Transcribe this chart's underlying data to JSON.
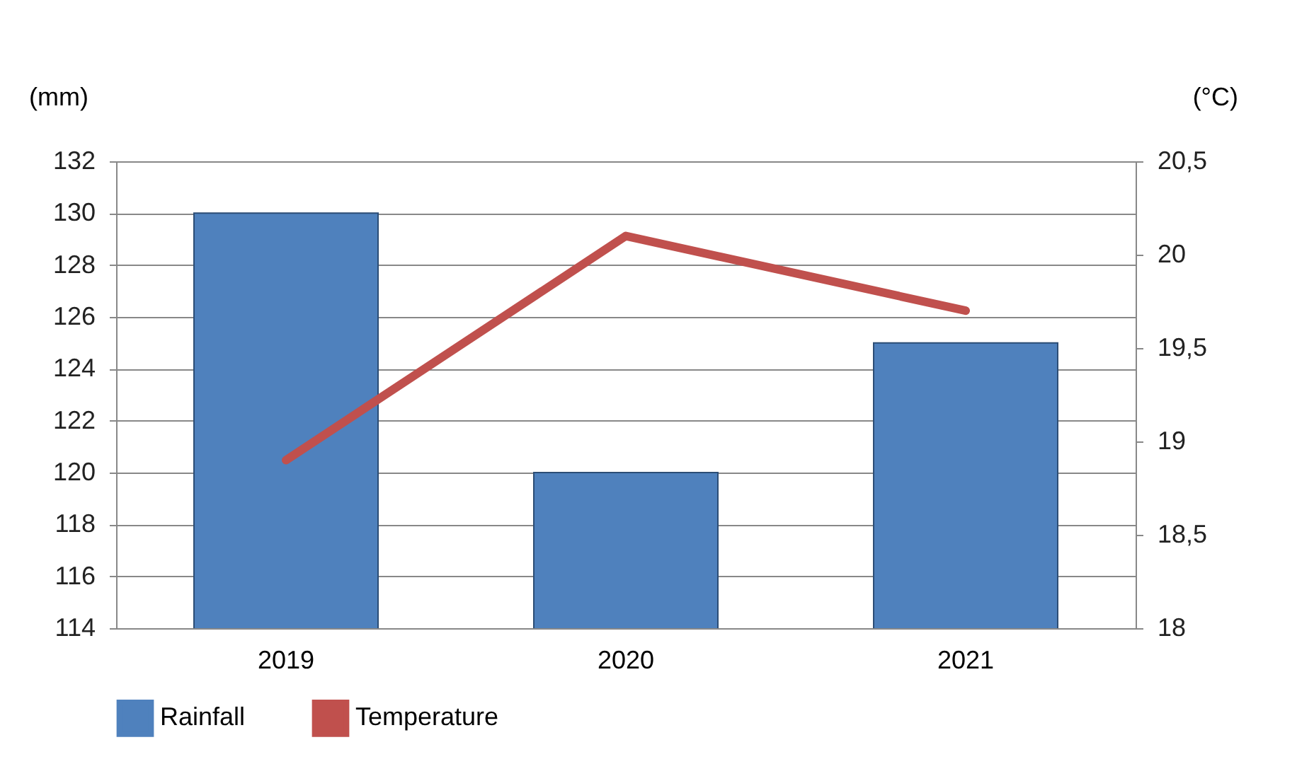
{
  "chart_data": {
    "type": "bar",
    "categories": [
      "2019",
      "2020",
      "2021"
    ],
    "ylabel": "(mm)",
    "y2label": "(°C)",
    "ylim": [
      114,
      132
    ],
    "yticks": [
      114,
      116,
      118,
      120,
      122,
      124,
      126,
      128,
      130,
      132
    ],
    "y2lim": [
      18,
      20.5
    ],
    "y2ticks": [
      18,
      {
        "value": 18.5,
        "label": "18,5"
      },
      19,
      {
        "value": 19.5,
        "label": "19,5"
      },
      20,
      {
        "value": 20.5,
        "label": "20,5"
      }
    ],
    "grid": "y",
    "legend": "bottom",
    "series": [
      {
        "name": "Rainfall",
        "color": "#4f81bd",
        "values": [
          130,
          120,
          125
        ]
      },
      {
        "name": "Temperature",
        "type": "line",
        "axis": "y2",
        "color": "#c0504d",
        "values": [
          18.9,
          20.1,
          19.7
        ]
      }
    ]
  }
}
